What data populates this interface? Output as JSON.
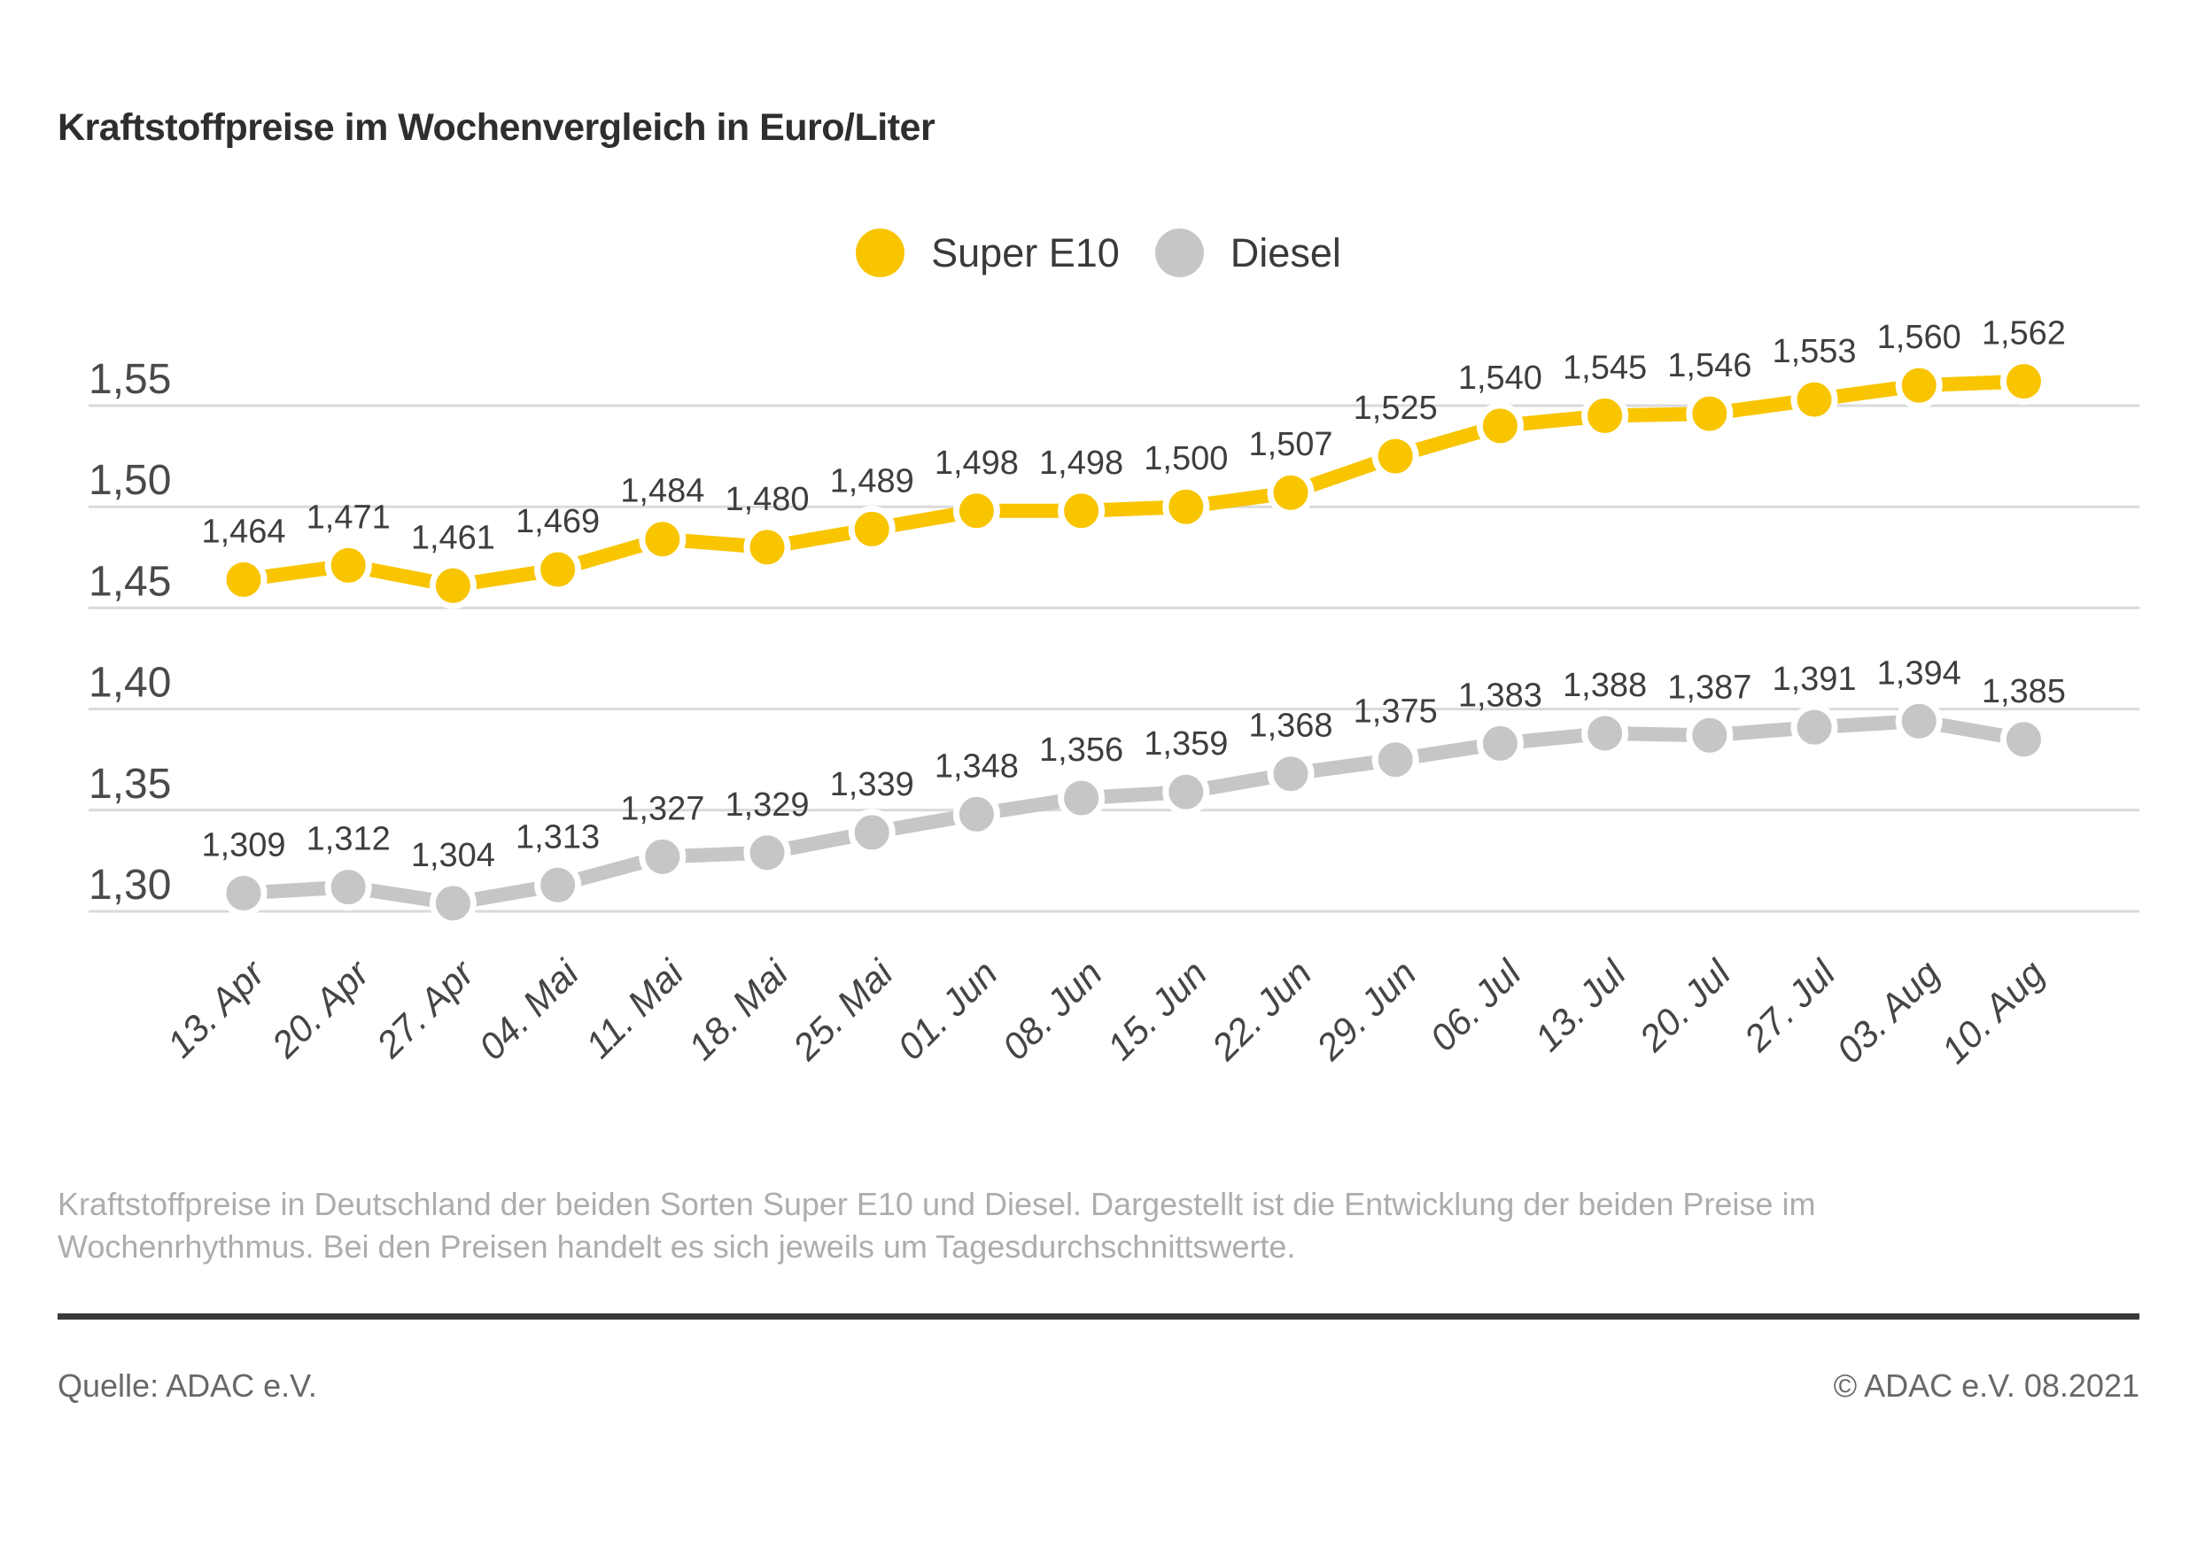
{
  "title": "Kraftstoffpreise im Wochenvergleich in Euro/Liter",
  "legend": [
    {
      "label": "Super E10",
      "color": "#F8C500"
    },
    {
      "label": "Diesel",
      "color": "#C6C6C6"
    }
  ],
  "chart_data": {
    "type": "line",
    "title": "Kraftstoffpreise im Wochenvergleich in Euro/Liter",
    "categories": [
      "13. Apr",
      "20. Apr",
      "27. Apr",
      "04. Mai",
      "11. Mai",
      "18. Mai",
      "25. Mai",
      "01. Jun",
      "08. Jun",
      "15. Jun",
      "22. Jun",
      "29. Jun",
      "06. Jul",
      "13. Jul",
      "20. Jul",
      "27. Jul",
      "03. Aug",
      "10. Aug"
    ],
    "series": [
      {
        "name": "Super E10",
        "color": "#F8C500",
        "values": [
          1.464,
          1.471,
          1.461,
          1.469,
          1.484,
          1.48,
          1.489,
          1.498,
          1.498,
          1.5,
          1.507,
          1.525,
          1.54,
          1.545,
          1.546,
          1.553,
          1.56,
          1.562
        ]
      },
      {
        "name": "Diesel",
        "color": "#C6C6C6",
        "values": [
          1.309,
          1.312,
          1.304,
          1.313,
          1.327,
          1.329,
          1.339,
          1.348,
          1.356,
          1.359,
          1.368,
          1.375,
          1.383,
          1.388,
          1.387,
          1.391,
          1.394,
          1.385
        ]
      }
    ],
    "yticks": [
      1.55,
      1.5,
      1.45,
      1.4,
      1.35,
      1.3
    ],
    "ylim": [
      1.28,
      1.57
    ],
    "ylabel": "Euro/Liter",
    "xlabel": "",
    "grid": true,
    "legend_position": "top",
    "value_decimals": 3,
    "decimal_separator": ",",
    "colors": {
      "grid": "#DADADA",
      "axis_text": "#4a4a4a",
      "data_label_text": "#3e3e3e",
      "date_label_text": "#454545"
    }
  },
  "description": "Kraftstoffpreise in Deutschland der beiden Sorten Super E10 und Diesel. Dargestellt ist die Entwicklung der beiden Preise im Wochenrhythmus. Bei den Preisen handelt es sich jeweils um Tagesdurchschnittswerte.",
  "footer": {
    "source": "Quelle: ADAC e.V.",
    "copyright": "© ADAC e.V. 08.2021"
  }
}
